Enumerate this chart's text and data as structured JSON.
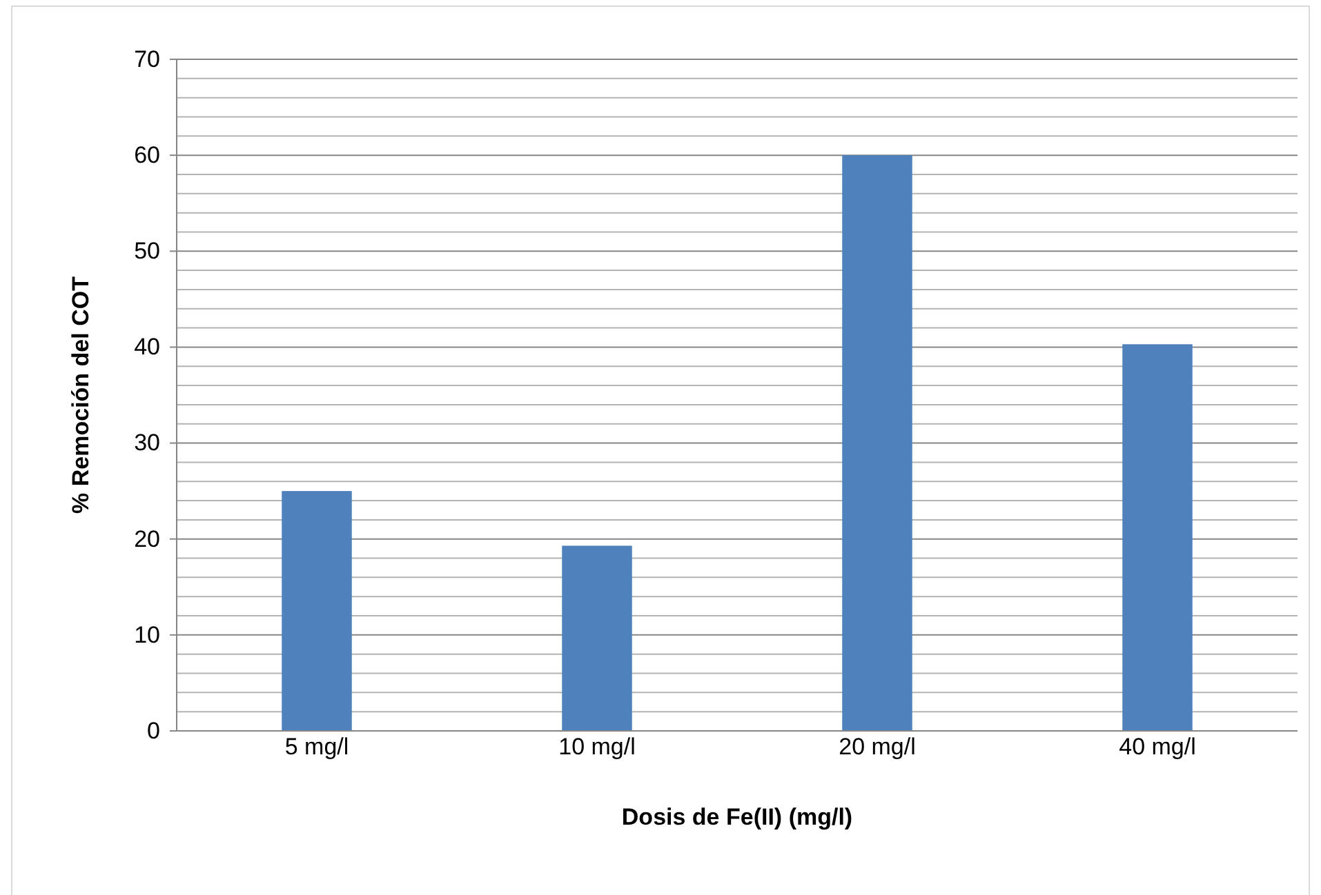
{
  "chart_data": {
    "type": "bar",
    "xlabel": "Dosis de Fe(II) (mg/l)",
    "ylabel": "% Remoción del COT",
    "categories": [
      "5 mg/l",
      "10 mg/l",
      "20 mg/l",
      "40 mg/l"
    ],
    "values": [
      25,
      19.3,
      60,
      40.3
    ],
    "color": "#4f81bd",
    "ylim": [
      0,
      70
    ],
    "yticks": [
      0,
      {
        "value": 2,
        "label": null
      },
      {
        "value": 4,
        "label": null
      },
      {
        "value": 6,
        "label": null
      },
      {
        "value": 8,
        "label": null
      },
      10,
      {
        "value": 12,
        "label": null
      },
      {
        "value": 14,
        "label": null
      },
      {
        "value": 16,
        "label": null
      },
      {
        "value": 18,
        "label": null
      },
      20,
      {
        "value": 22,
        "label": null
      },
      {
        "value": 24,
        "label": null
      },
      {
        "value": 26,
        "label": null
      },
      {
        "value": 28,
        "label": null
      },
      30,
      {
        "value": 32,
        "label": null
      },
      {
        "value": 34,
        "label": null
      },
      {
        "value": 36,
        "label": null
      },
      {
        "value": 38,
        "label": null
      },
      40,
      {
        "value": 42,
        "label": null
      },
      {
        "value": 44,
        "label": null
      },
      {
        "value": 46,
        "label": null
      },
      {
        "value": 48,
        "label": null
      },
      50,
      {
        "value": 52,
        "label": null
      },
      {
        "value": 54,
        "label": null
      },
      {
        "value": 56,
        "label": null
      },
      {
        "value": 58,
        "label": null
      },
      60,
      {
        "value": 62,
        "label": null
      },
      {
        "value": 64,
        "label": null
      },
      {
        "value": 66,
        "label": null
      },
      {
        "value": 68,
        "label": null
      },
      70
    ],
    "grid": "y"
  }
}
